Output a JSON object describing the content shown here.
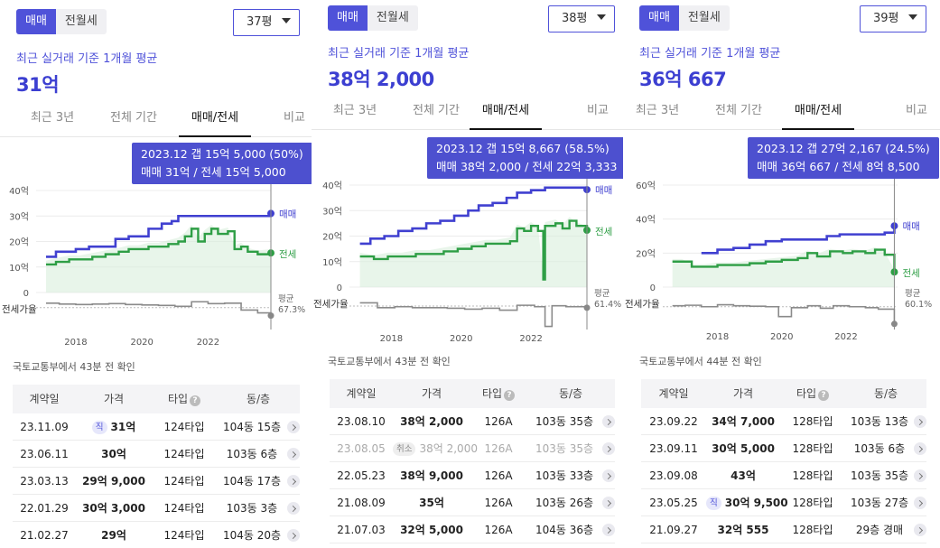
{
  "panels": [
    {
      "toggle": {
        "sale": "매매",
        "lease": "전월세"
      },
      "size": "37평",
      "average_label": "최근 실거래 기준 1개월 평균",
      "average_value": "31억",
      "tabs": [
        "최근 3년",
        "전체 기간",
        "매매/전세",
        "비교"
      ],
      "active_tab": 2,
      "tooltip": {
        "line1": "2023.12  갭 15억 5,000 (50%)",
        "line2": "매매 31억 / 전세 15억 5,000"
      },
      "updated": "국토교통부에서 43분 전 확인",
      "table": {
        "headers": [
          "계약일",
          "가격",
          "타입",
          "동/층"
        ],
        "rows": [
          {
            "date": "23.11.09",
            "badge": "직",
            "price": "31억",
            "type": "124타입",
            "unit": "104동 15층"
          },
          {
            "date": "23.06.11",
            "badge": "",
            "price": "30억",
            "type": "124타입",
            "unit": "103동 6층"
          },
          {
            "date": "23.03.13",
            "badge": "",
            "price": "29억 9,000",
            "type": "124타입",
            "unit": "104동 17층"
          },
          {
            "date": "22.01.29",
            "badge": "",
            "price": "30억 3,000",
            "type": "124타입",
            "unit": "103동 3층"
          },
          {
            "date": "21.02.27",
            "badge": "",
            "price": "29억",
            "type": "124타입",
            "unit": "104동 20층"
          }
        ]
      }
    },
    {
      "toggle": {
        "sale": "매매",
        "lease": "전월세"
      },
      "size": "38평",
      "average_label": "최근 실거래 기준 1개월 평균",
      "average_value": "38억 2,000",
      "tabs": [
        "최근 3년",
        "전체 기간",
        "매매/전세",
        "비교"
      ],
      "active_tab": 2,
      "tooltip": {
        "line1": "2023.12  갭 15억 8,667 (58.5%)",
        "line2": "매매 38억 2,000 / 전세 22억 3,333"
      },
      "updated": "국토교통부에서 43분 전 확인",
      "table": {
        "headers": [
          "계약일",
          "가격",
          "타입",
          "동/층"
        ],
        "rows": [
          {
            "date": "23.08.10",
            "badge": "",
            "price": "38억 2,000",
            "type": "126A",
            "unit": "103동 35층",
            "dim": false
          },
          {
            "date": "23.08.05",
            "badge": "취소",
            "price": "38억 2,000",
            "type": "126A",
            "unit": "103동 35층",
            "dim": true
          },
          {
            "date": "22.05.23",
            "badge": "",
            "price": "38억 9,000",
            "type": "126A",
            "unit": "103동 33층",
            "dim": false
          },
          {
            "date": "21.08.09",
            "badge": "",
            "price": "35억",
            "type": "126A",
            "unit": "103동 26층",
            "dim": false
          },
          {
            "date": "21.07.03",
            "badge": "",
            "price": "32억 5,000",
            "type": "126A",
            "unit": "104동 36층",
            "dim": false
          }
        ]
      }
    },
    {
      "toggle": {
        "sale": "매매",
        "lease": "전월세"
      },
      "size": "39평",
      "average_label": "최근 실거래 기준 1개월 평균",
      "average_value": "36억 667",
      "tabs": [
        "최근 3년",
        "전체 기간",
        "매매/전세",
        "비교"
      ],
      "active_tab": 2,
      "tooltip": {
        "line1": "2023.12  갭 27억 2,167 (24.5%)",
        "line2": "매매 36억 667 / 전세 8억 8,500"
      },
      "updated": "국토교통부에서 44분 전 확인",
      "table": {
        "headers": [
          "계약일",
          "가격",
          "타입",
          "동/층"
        ],
        "rows": [
          {
            "date": "23.09.22",
            "badge": "",
            "price": "34억 7,000",
            "type": "128타입",
            "unit": "103동 13층"
          },
          {
            "date": "23.09.11",
            "badge": "",
            "price": "30억 5,000",
            "type": "128타입",
            "unit": "103동 6층"
          },
          {
            "date": "23.09.08",
            "badge": "",
            "price": "43억",
            "type": "128타입",
            "unit": "103동 35층"
          },
          {
            "date": "23.05.25",
            "badge": "직",
            "price": "30억 9,500",
            "type": "128타입",
            "unit": "103동 27층"
          },
          {
            "date": "21.09.27",
            "badge": "",
            "price": "32억 555",
            "type": "128타입",
            "unit": "29층 경매"
          }
        ]
      }
    }
  ],
  "chart_data": [
    {
      "type": "line",
      "x_ticks": [
        "2018",
        "2020",
        "2022"
      ],
      "y_ticks": [
        "40억",
        "30억",
        "20억",
        "10억",
        "0"
      ],
      "ylim": [
        0,
        40
      ],
      "sub_label": "전세가율",
      "series": [
        {
          "name": "매매",
          "color": "#4040d0",
          "points": [
            [
              2017.1,
              14
            ],
            [
              2017.4,
              16
            ],
            [
              2017.8,
              16
            ],
            [
              2018.0,
              17
            ],
            [
              2018.4,
              18
            ],
            [
              2018.8,
              18
            ],
            [
              2019.2,
              21
            ],
            [
              2019.6,
              22
            ],
            [
              2019.9,
              22
            ],
            [
              2020.2,
              25
            ],
            [
              2020.6,
              27
            ],
            [
              2020.9,
              28
            ],
            [
              2021.1,
              30
            ],
            [
              2021.6,
              30
            ],
            [
              2022.2,
              30
            ],
            [
              2022.8,
              30
            ],
            [
              2023.2,
              30
            ],
            [
              2023.5,
              30
            ],
            [
              2023.9,
              31
            ]
          ]
        },
        {
          "name": "전세",
          "color": "#2e9e45",
          "points": [
            [
              2017.1,
              11
            ],
            [
              2017.4,
              12
            ],
            [
              2017.8,
              13
            ],
            [
              2018.1,
              13
            ],
            [
              2018.5,
              14
            ],
            [
              2018.9,
              15
            ],
            [
              2019.3,
              16
            ],
            [
              2019.6,
              17
            ],
            [
              2019.9,
              17
            ],
            [
              2020.2,
              18
            ],
            [
              2020.5,
              18
            ],
            [
              2020.8,
              19
            ],
            [
              2021.1,
              20
            ],
            [
              2021.3,
              22
            ],
            [
              2021.5,
              25
            ],
            [
              2021.7,
              20
            ],
            [
              2021.9,
              23
            ],
            [
              2022.1,
              25
            ],
            [
              2022.3,
              23
            ],
            [
              2022.6,
              24
            ],
            [
              2022.8,
              17
            ],
            [
              2023.0,
              18
            ],
            [
              2023.2,
              16
            ],
            [
              2023.5,
              15
            ],
            [
              2023.9,
              15.5
            ]
          ]
        }
      ],
      "ratio": {
        "label": "평균",
        "value": "67.3%",
        "points": [
          [
            2017.1,
            77
          ],
          [
            2017.5,
            75
          ],
          [
            2018.0,
            74
          ],
          [
            2018.5,
            75
          ],
          [
            2019.0,
            76
          ],
          [
            2019.5,
            74
          ],
          [
            2020.0,
            73
          ],
          [
            2020.5,
            72
          ],
          [
            2021.0,
            70
          ],
          [
            2021.5,
            80
          ],
          [
            2022.0,
            76
          ],
          [
            2022.5,
            77
          ],
          [
            2023.0,
            62
          ],
          [
            2023.5,
            56
          ],
          [
            2023.9,
            50
          ]
        ]
      },
      "tooltip_x": 2023.9
    },
    {
      "type": "line",
      "x_ticks": [
        "2018",
        "2020",
        "2022"
      ],
      "y_ticks": [
        "40억",
        "30억",
        "20억",
        "10억",
        "0"
      ],
      "ylim": [
        0,
        40
      ],
      "sub_label": "전세가율",
      "series": [
        {
          "name": "매매",
          "color": "#4040d0",
          "points": [
            [
              2017.1,
              17
            ],
            [
              2017.4,
              19
            ],
            [
              2017.8,
              20
            ],
            [
              2018.2,
              22
            ],
            [
              2018.6,
              23
            ],
            [
              2019.0,
              25
            ],
            [
              2019.4,
              26
            ],
            [
              2019.8,
              28
            ],
            [
              2020.2,
              30
            ],
            [
              2020.5,
              32
            ],
            [
              2020.9,
              33
            ],
            [
              2021.3,
              35
            ],
            [
              2021.6,
              37
            ],
            [
              2022.0,
              38
            ],
            [
              2022.4,
              39
            ],
            [
              2022.8,
              39
            ],
            [
              2023.2,
              39
            ],
            [
              2023.6,
              38.2
            ]
          ]
        },
        {
          "name": "전세",
          "color": "#2e9e45",
          "points": [
            [
              2017.1,
              12
            ],
            [
              2017.5,
              11
            ],
            [
              2017.9,
              12
            ],
            [
              2018.3,
              12
            ],
            [
              2018.7,
              13
            ],
            [
              2019.1,
              13
            ],
            [
              2019.5,
              14
            ],
            [
              2019.9,
              15
            ],
            [
              2020.3,
              16
            ],
            [
              2020.7,
              17
            ],
            [
              2021.0,
              17
            ],
            [
              2021.4,
              18
            ],
            [
              2021.6,
              23
            ],
            [
              2021.8,
              22
            ],
            [
              2022.0,
              24
            ],
            [
              2022.2,
              22
            ],
            [
              2022.35,
              3
            ],
            [
              2022.4,
              24
            ],
            [
              2022.7,
              25
            ],
            [
              2022.9,
              23
            ],
            [
              2023.1,
              26
            ],
            [
              2023.3,
              24
            ],
            [
              2023.6,
              22.3
            ]
          ]
        }
      ],
      "ratio": {
        "label": "평균",
        "value": "61.4%",
        "points": [
          [
            2017.1,
            68
          ],
          [
            2017.6,
            58
          ],
          [
            2018.1,
            60
          ],
          [
            2018.6,
            58
          ],
          [
            2019.1,
            58
          ],
          [
            2019.6,
            57
          ],
          [
            2020.1,
            55
          ],
          [
            2020.6,
            57
          ],
          [
            2021.1,
            53
          ],
          [
            2021.6,
            63
          ],
          [
            2022.1,
            60
          ],
          [
            2022.4,
            20
          ],
          [
            2022.6,
            62
          ],
          [
            2023.0,
            60
          ],
          [
            2023.6,
            58
          ]
        ]
      },
      "tooltip_x": 2023.6
    },
    {
      "type": "line",
      "x_ticks": [
        "2018",
        "2020",
        "2022"
      ],
      "y_ticks": [
        "60억",
        "40억",
        "20억",
        "0"
      ],
      "ylim": [
        0,
        60
      ],
      "sub_label": "전세가율",
      "series": [
        {
          "name": "매매",
          "color": "#4040d0",
          "points": [
            [
              2017.5,
              20
            ],
            [
              2018.0,
              22
            ],
            [
              2018.5,
              23
            ],
            [
              2019.0,
              25
            ],
            [
              2019.5,
              27
            ],
            [
              2020.0,
              28
            ],
            [
              2020.5,
              28
            ],
            [
              2021.0,
              28
            ],
            [
              2021.4,
              30
            ],
            [
              2021.8,
              31
            ],
            [
              2022.3,
              31
            ],
            [
              2022.8,
              31
            ],
            [
              2023.2,
              32
            ],
            [
              2023.5,
              36
            ]
          ]
        },
        {
          "name": "전세",
          "color": "#2e9e45",
          "points": [
            [
              2016.6,
              15
            ],
            [
              2016.9,
              15
            ],
            [
              2017.2,
              12
            ],
            [
              2017.6,
              12
            ],
            [
              2018.0,
              13
            ],
            [
              2018.5,
              13
            ],
            [
              2019.0,
              14
            ],
            [
              2019.5,
              15
            ],
            [
              2020.0,
              16
            ],
            [
              2020.5,
              17
            ],
            [
              2020.8,
              20
            ],
            [
              2021.1,
              18
            ],
            [
              2021.5,
              21
            ],
            [
              2021.9,
              20
            ],
            [
              2022.2,
              21
            ],
            [
              2022.6,
              20
            ],
            [
              2022.9,
              22
            ],
            [
              2023.2,
              19
            ],
            [
              2023.5,
              8.9
            ]
          ]
        }
      ],
      "ratio": {
        "label": "평균",
        "value": "60.1%",
        "points": [
          [
            2016.6,
            62
          ],
          [
            2017.0,
            63
          ],
          [
            2017.5,
            60
          ],
          [
            2018.0,
            64
          ],
          [
            2018.5,
            62
          ],
          [
            2019.0,
            61
          ],
          [
            2019.5,
            60
          ],
          [
            2019.9,
            40
          ],
          [
            2020.3,
            58
          ],
          [
            2020.8,
            62
          ],
          [
            2021.2,
            57
          ],
          [
            2021.6,
            62
          ],
          [
            2022.1,
            60
          ],
          [
            2022.6,
            58
          ],
          [
            2023.0,
            55
          ],
          [
            2023.5,
            25
          ]
        ]
      },
      "tooltip_x": 2023.5
    }
  ]
}
